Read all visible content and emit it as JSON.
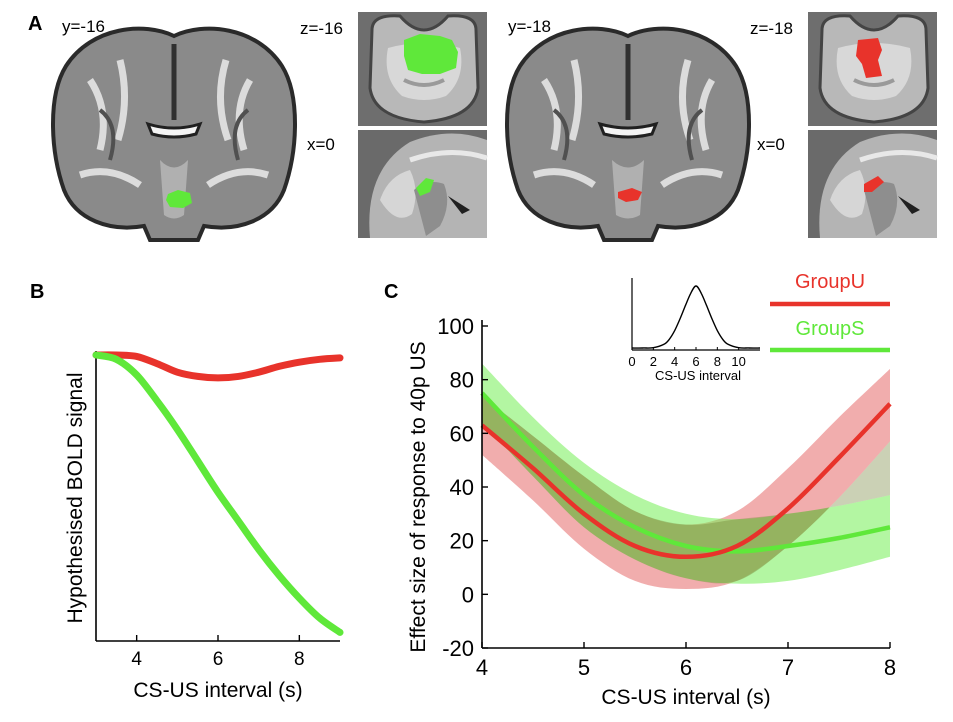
{
  "panels": {
    "a": {
      "letter": "A",
      "left_coronal_label": "y=-16",
      "left_axial_label": "z=-16",
      "left_sagittal_label": "x=0",
      "right_coronal_label": "y=-18",
      "right_axial_label": "z=-18",
      "right_sagittal_label": "x=0"
    },
    "b": {
      "letter": "B"
    },
    "c": {
      "letter": "C"
    }
  },
  "colors": {
    "groupU": "#e8332b",
    "groupS": "#5fe83a",
    "groupU_band": "#e66a6a",
    "groupS_band": "#74ee55",
    "axis": "#000000",
    "brain_bg": "#6e6e6e"
  },
  "icons": {
    "left_coronal": "brain-coronal-slice-icon",
    "left_axial": "brain-axial-slice-icon",
    "left_sagittal": "brain-sagittal-slice-icon",
    "right_coronal": "brain-coronal-slice-icon",
    "right_axial": "brain-axial-slice-icon",
    "right_sagittal": "brain-sagittal-slice-icon"
  },
  "chart_data": [
    {
      "id": "B",
      "type": "line",
      "title": "",
      "xlabel": "CS-US interval (s)",
      "ylabel": "Hypothesised BOLD signal",
      "xlim": [
        3,
        9
      ],
      "ylim": [
        0,
        1
      ],
      "xticks": [
        4,
        6,
        8
      ],
      "xtick_labels": [
        "4",
        "6",
        "8"
      ],
      "grid": false,
      "series": [
        {
          "name": "GroupU",
          "color": "#e8332b",
          "x": [
            3,
            3.5,
            4,
            4.5,
            5,
            5.5,
            6,
            6.5,
            7,
            7.5,
            8,
            8.5,
            9
          ],
          "y": [
            1.0,
            1.0,
            0.995,
            0.97,
            0.94,
            0.925,
            0.92,
            0.925,
            0.94,
            0.96,
            0.975,
            0.985,
            0.99
          ]
        },
        {
          "name": "GroupS",
          "color": "#5fe83a",
          "x": [
            3,
            3.5,
            4,
            4.5,
            5,
            5.5,
            6,
            6.5,
            7,
            7.5,
            8,
            8.5,
            9
          ],
          "y": [
            1.0,
            0.985,
            0.93,
            0.84,
            0.74,
            0.63,
            0.52,
            0.42,
            0.32,
            0.23,
            0.15,
            0.08,
            0.03
          ]
        }
      ]
    },
    {
      "id": "C",
      "type": "line",
      "title": "",
      "xlabel": "CS-US interval (s)",
      "ylabel": "Effect size of response to 40p US",
      "xlim": [
        4,
        8
      ],
      "ylim": [
        -20,
        100
      ],
      "xticks": [
        4,
        5,
        6,
        7,
        8
      ],
      "xtick_labels": [
        "4",
        "5",
        "6",
        "7",
        "8"
      ],
      "yticks": [
        -20,
        0,
        20,
        40,
        60,
        80,
        100
      ],
      "ytick_labels": [
        "-20",
        "0",
        "20",
        "40",
        "60",
        "80",
        "100"
      ],
      "grid": false,
      "legend_position": "top-right",
      "series": [
        {
          "name": "GroupU",
          "color": "#e8332b",
          "band_color": "#e66a6a",
          "x": [
            4,
            4.5,
            5,
            5.5,
            6,
            6.5,
            7,
            7.5,
            8
          ],
          "y": [
            63,
            47,
            30,
            18,
            14,
            18,
            32,
            51,
            71
          ],
          "lower": [
            52,
            35,
            17,
            5,
            2,
            5,
            18,
            36,
            57
          ],
          "upper": [
            74,
            59,
            44,
            31,
            26,
            31,
            47,
            66,
            84
          ]
        },
        {
          "name": "GroupS",
          "color": "#5fe83a",
          "band_color": "#74ee55",
          "x": [
            4,
            4.5,
            5,
            5.5,
            6,
            6.5,
            7,
            7.5,
            8
          ],
          "y": [
            75,
            55,
            37,
            25,
            18,
            16,
            18,
            21,
            25
          ],
          "lower": [
            64,
            44,
            25,
            13,
            6,
            4,
            5,
            9,
            14
          ],
          "upper": [
            86,
            66,
            49,
            37,
            30,
            28,
            30,
            33,
            37
          ]
        }
      ],
      "inset": {
        "type": "line",
        "xlabel": "CS-US interval",
        "xlim": [
          0,
          12
        ],
        "xticks": [
          0,
          2,
          4,
          6,
          8,
          10
        ],
        "xtick_labels": [
          "0",
          "2",
          "4",
          "6",
          "8",
          "10"
        ],
        "curve": {
          "x": [
            0,
            1,
            2,
            3,
            3.5,
            4,
            4.5,
            5,
            5.5,
            6,
            6.5,
            7,
            7.5,
            8,
            8.5,
            9,
            10,
            11,
            12
          ],
          "y": [
            0,
            0,
            0.005,
            0.06,
            0.14,
            0.28,
            0.47,
            0.68,
            0.88,
            1.0,
            0.88,
            0.68,
            0.47,
            0.28,
            0.14,
            0.06,
            0.005,
            0,
            0
          ]
        }
      }
    }
  ]
}
